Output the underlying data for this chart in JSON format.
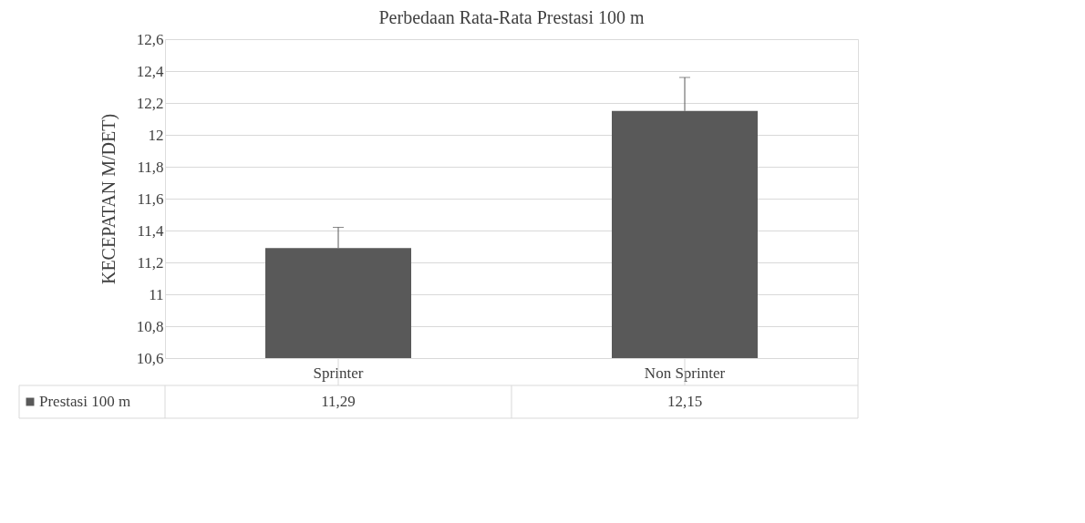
{
  "chart_data": {
    "type": "bar",
    "title": "Perbedaan Rata-Rata Prestasi 100 m",
    "ylabel": "KECEPATAN M/DET)",
    "categories": [
      "Sprinter",
      "Non Sprinter"
    ],
    "series": [
      {
        "name": "Prestasi 100 m",
        "color": "#595959",
        "values": [
          11.29,
          12.15
        ],
        "value_labels": [
          "11,29",
          "12,15"
        ],
        "errors": [
          [
            11.29,
            11.42
          ],
          [
            12.15,
            12.36
          ]
        ]
      }
    ],
    "ylim": [
      10.6,
      12.6
    ],
    "yticks": [
      {
        "value": 10.6,
        "label": "10,6"
      },
      {
        "value": 10.8,
        "label": "10,8"
      },
      11,
      {
        "value": 11.2,
        "label": "11,2"
      },
      {
        "value": 11.4,
        "label": "11,4"
      },
      {
        "value": 11.6,
        "label": "11,6"
      },
      {
        "value": 11.8,
        "label": "11,8"
      },
      12,
      {
        "value": 12.2,
        "label": "12,2"
      },
      {
        "value": 12.4,
        "label": "12,4"
      },
      {
        "value": 12.6,
        "label": "12,6"
      }
    ],
    "grid": "y",
    "legend": "bottom"
  }
}
